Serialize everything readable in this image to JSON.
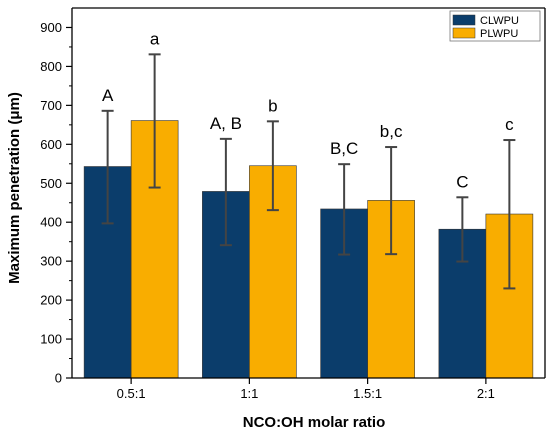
{
  "chart_data": {
    "type": "bar",
    "xlabel": "NCO:OH molar ratio",
    "ylabel": "Maximum penetration (μm)",
    "ylim": [
      0,
      950
    ],
    "yticks": [
      0,
      100,
      200,
      300,
      400,
      500,
      600,
      700,
      800,
      900
    ],
    "categories": [
      "0.5:1",
      "1:1",
      "1.5:1",
      "2:1"
    ],
    "legend_position": "top-right",
    "series": [
      {
        "name": "CLWPU",
        "color": "#0b3d6b",
        "values": [
          543,
          479,
          434,
          382
        ],
        "err_low": [
          397,
          341,
          317,
          299
        ],
        "err_high": [
          686,
          614,
          549,
          464
        ],
        "labels": [
          "A",
          "A, B",
          "B,C",
          "C"
        ]
      },
      {
        "name": "PLWPU",
        "color": "#f9ad00",
        "values": [
          661,
          545,
          456,
          421
        ],
        "err_low": [
          489,
          431,
          318,
          230
        ],
        "err_high": [
          831,
          659,
          593,
          611
        ],
        "labels": [
          "a",
          "b",
          "b,c",
          "c"
        ]
      }
    ]
  }
}
